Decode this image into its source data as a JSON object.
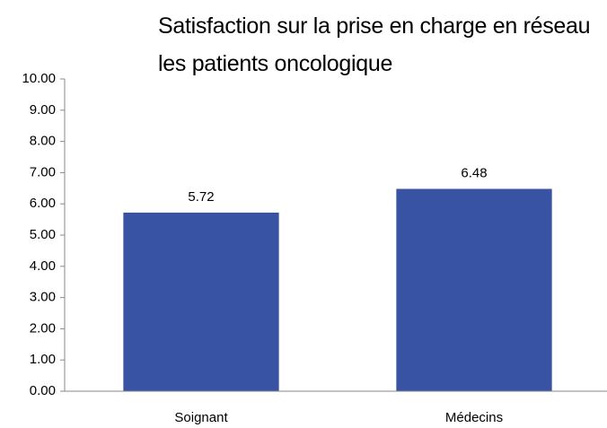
{
  "chart_data": {
    "type": "bar",
    "title": "Satisfaction sur la prise en charge en réseau les patients oncologique",
    "categories": [
      "Soignant",
      "Médecins"
    ],
    "values": [
      5.72,
      6.48
    ],
    "color": "#3953a4",
    "ylim": [
      0,
      10
    ],
    "yticks": [
      {
        "value": 0,
        "label": "0.00"
      },
      {
        "value": 1,
        "label": "1.00"
      },
      {
        "value": 2,
        "label": "2.00"
      },
      {
        "value": 3,
        "label": "3.00"
      },
      {
        "value": 4,
        "label": "4.00"
      },
      {
        "value": 5,
        "label": "5.00"
      },
      {
        "value": 6,
        "label": "6.00"
      },
      {
        "value": 7,
        "label": "7.00"
      },
      {
        "value": 8,
        "label": "8.00"
      },
      {
        "value": 9,
        "label": "9.00"
      },
      {
        "value": 10,
        "label": "10.00"
      }
    ],
    "grid": false
  }
}
